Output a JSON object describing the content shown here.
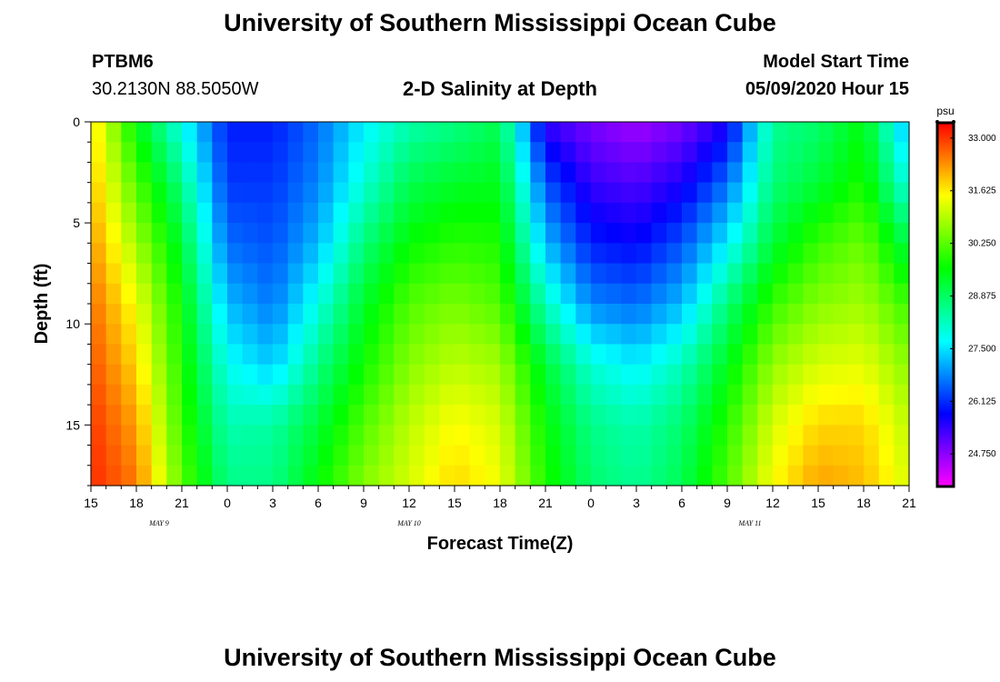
{
  "header": {
    "title": "University of Southern Mississippi Ocean Cube",
    "station": "PTBM6",
    "coords": "30.2130N 88.5050W",
    "plot_title": "2-D Salinity at Depth",
    "model_label": "Model Start Time",
    "model_time": "05/09/2020 Hour 15"
  },
  "footer": {
    "title": "University of Southern Mississippi Ocean Cube"
  },
  "chart_data": {
    "type": "heatmap",
    "title": "2-D Salinity at Depth",
    "xlabel": "Forecast Time(Z)",
    "ylabel": "Depth (ft)",
    "x_hours": [
      0,
      3,
      6,
      9,
      12,
      15,
      18,
      21,
      24,
      27,
      30,
      33,
      36,
      39,
      42,
      45,
      48,
      51,
      54
    ],
    "x_tick_labels": [
      "15",
      "18",
      "21",
      "0",
      "3",
      "6",
      "9",
      "12",
      "15",
      "18",
      "21",
      "0",
      "3",
      "6",
      "9",
      "12",
      "15",
      "18",
      "21"
    ],
    "date_labels": [
      {
        "text": "MAY 9",
        "hour": 4.5
      },
      {
        "text": "MAY 10",
        "hour": 21
      },
      {
        "text": "MAY 11",
        "hour": 43.5
      }
    ],
    "xlim": [
      0,
      54
    ],
    "ylim": [
      0,
      18
    ],
    "y_ticks": [
      0,
      5,
      10,
      15
    ],
    "depths_ft": [
      0,
      3,
      6,
      9,
      12,
      15,
      18
    ],
    "z_hours": [
      0,
      3,
      6,
      9,
      12,
      15,
      18,
      21,
      24,
      27,
      30,
      33,
      36,
      39,
      42,
      45,
      48,
      51,
      54
    ],
    "salinity": [
      [
        31.8,
        29.5,
        27.8,
        26.0,
        26.0,
        26.6,
        27.6,
        28.3,
        28.6,
        29.0,
        25.4,
        24.9,
        24.6,
        24.9,
        25.6,
        28.5,
        28.8,
        29.5,
        27.0
      ],
      [
        32.0,
        30.2,
        28.6,
        26.2,
        26.2,
        26.8,
        28.0,
        29.0,
        29.3,
        29.4,
        26.4,
        25.4,
        25.2,
        25.6,
        26.6,
        28.7,
        29.2,
        29.8,
        27.8
      ],
      [
        32.3,
        30.8,
        29.2,
        26.6,
        26.4,
        27.2,
        28.7,
        29.6,
        29.9,
        29.8,
        27.2,
        26.0,
        25.8,
        26.4,
        27.6,
        29.2,
        30.0,
        30.4,
        29.0
      ],
      [
        32.6,
        31.4,
        29.6,
        27.2,
        26.7,
        27.9,
        29.3,
        30.2,
        30.5,
        30.2,
        28.2,
        26.8,
        26.6,
        27.2,
        28.7,
        30.0,
        30.6,
        30.8,
        30.0
      ],
      [
        32.8,
        31.8,
        29.8,
        27.8,
        27.3,
        28.6,
        29.7,
        30.6,
        31.0,
        30.8,
        29.2,
        28.0,
        27.6,
        28.2,
        29.4,
        30.7,
        31.2,
        31.3,
        30.6
      ],
      [
        33.0,
        32.2,
        30.0,
        28.3,
        28.4,
        29.2,
        30.2,
        31.0,
        31.5,
        31.2,
        29.6,
        28.6,
        28.3,
        28.8,
        29.9,
        31.2,
        31.8,
        31.8,
        31.0
      ],
      [
        33.1,
        32.5,
        30.3,
        28.6,
        28.6,
        29.6,
        30.6,
        31.2,
        31.8,
        31.4,
        29.8,
        28.8,
        28.5,
        29.0,
        30.2,
        31.5,
        32.2,
        32.0,
        31.2
      ]
    ],
    "colorbar": {
      "label": "psu",
      "ticks": [
        "33.000",
        "31.625",
        "30.250",
        "28.875",
        "27.500",
        "26.125",
        "24.750"
      ],
      "range": [
        23.9,
        33.4
      ]
    }
  }
}
